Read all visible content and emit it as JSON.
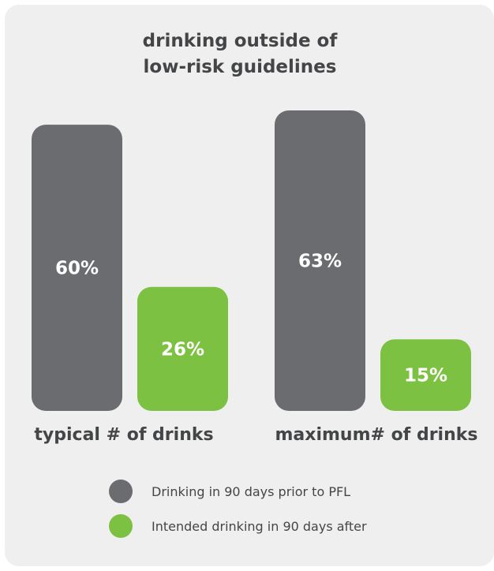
{
  "colors": {
    "background": "#efefef",
    "prior": "#6b6c70",
    "after": "#7dc142",
    "text": "#444547"
  },
  "chart_data": {
    "type": "bar",
    "title_lines": [
      "drinking outside of",
      "low-risk guidelines"
    ],
    "categories": [
      "typical # of drinks",
      "maximum# of drinks"
    ],
    "series": [
      {
        "name": "Drinking in 90 days prior to PFL",
        "values": [
          60,
          63
        ],
        "labels": [
          "60%",
          "63%"
        ]
      },
      {
        "name": "Intended drinking in 90 days after",
        "values": [
          26,
          15
        ],
        "labels": [
          "26%",
          "15%"
        ]
      }
    ],
    "ylim": [
      0,
      63
    ],
    "axes_visible": false,
    "grid": false,
    "legend_position": "bottom"
  }
}
